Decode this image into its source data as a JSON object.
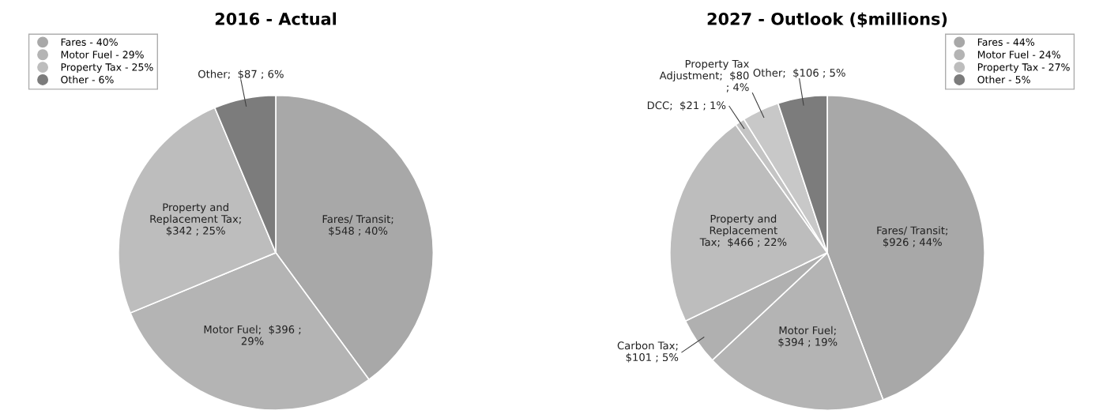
{
  "chart_data": [
    {
      "type": "pie",
      "title": "2016 - Actual",
      "legend": "top left",
      "categories": [
        "Fares - 40%",
        "Motor Fuel - 29%",
        "Property Tax - 25%",
        "Other - 6%"
      ],
      "values": [
        548,
        396,
        342,
        87
      ],
      "colors": [
        "#a8a8a8",
        "#b4b4b4",
        "#bdbdbd",
        "#7c7c7c"
      ],
      "value_labels": [
        "Fares/ Transit;\n$548 ; 40%",
        "Motor Fuel;  $396 ;\n29%",
        "Property and\nReplacement Tax;\n$342 ; 25%",
        "Other;  $87 ; 6%"
      ]
    },
    {
      "type": "pie",
      "title": "2027 - Outlook ($millions)",
      "legend": "top right",
      "categories": [
        "Fares - 44%",
        "Motor Fuel - 24%",
        null,
        "Property Tax - 27%",
        null,
        null,
        "Other - 5%"
      ],
      "values": [
        926,
        394,
        101,
        466,
        21,
        80,
        106
      ],
      "colors": [
        "#a8a8a8",
        "#b4b4b4",
        "#b0b0b0",
        "#bdbdbd",
        "#c4c4c4",
        "#c8c8c8",
        "#7c7c7c"
      ],
      "value_labels": [
        "Fares/ Transit;\n$926 ; 44%",
        "Motor Fuel;\n$394 ; 19%",
        "Carbon Tax;\n$101 ; 5%",
        "Property and\nReplacement\nTax;  $466 ; 22%",
        "DCC;  $21 ; 1%",
        "Property Tax\nAdjustment;  $80\n; 4%",
        "Other;  $106 ; 5%"
      ]
    }
  ]
}
